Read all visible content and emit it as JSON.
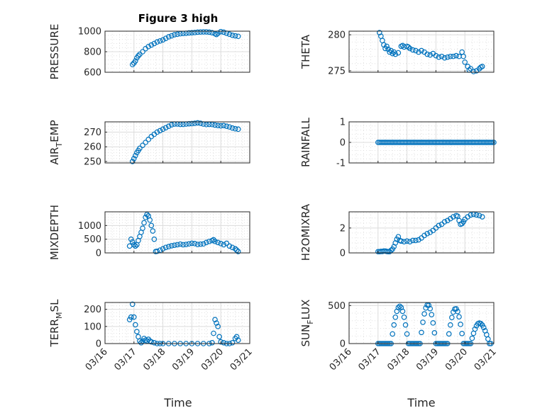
{
  "figure": {
    "title": "Figure 3 high",
    "xlabel": "Time"
  },
  "chart_data": [
    {
      "type": "scatter",
      "ylabel": "PRESSURE",
      "xlim": [
        "03/16",
        "03/21"
      ],
      "ylim": [
        600,
        1000
      ],
      "xticks": [
        "03/16",
        "03/17",
        "03/18",
        "03/19",
        "03/20",
        "03/21"
      ],
      "yticks": [
        600,
        800,
        1000
      ],
      "grid": true,
      "points": [
        [
          0.95,
          675
        ],
        [
          1.0,
          690
        ],
        [
          1.05,
          710
        ],
        [
          1.1,
          740
        ],
        [
          1.15,
          760
        ],
        [
          1.2,
          775
        ],
        [
          1.3,
          800
        ],
        [
          1.4,
          830
        ],
        [
          1.5,
          850
        ],
        [
          1.6,
          865
        ],
        [
          1.7,
          880
        ],
        [
          1.8,
          895
        ],
        [
          1.9,
          905
        ],
        [
          2.0,
          915
        ],
        [
          2.1,
          930
        ],
        [
          2.2,
          945
        ],
        [
          2.3,
          955
        ],
        [
          2.4,
          965
        ],
        [
          2.5,
          970
        ],
        [
          2.6,
          975
        ],
        [
          2.7,
          978
        ],
        [
          2.8,
          980
        ],
        [
          2.9,
          983
        ],
        [
          3.0,
          985
        ],
        [
          3.1,
          987
        ],
        [
          3.2,
          990
        ],
        [
          3.3,
          992
        ],
        [
          3.4,
          993
        ],
        [
          3.5,
          993
        ],
        [
          3.6,
          990
        ],
        [
          3.7,
          985
        ],
        [
          3.8,
          975
        ],
        [
          3.85,
          968
        ],
        [
          3.9,
          980
        ],
        [
          4.0,
          995
        ],
        [
          4.1,
          990
        ],
        [
          4.2,
          980
        ],
        [
          4.3,
          970
        ],
        [
          4.4,
          960
        ],
        [
          4.5,
          955
        ],
        [
          4.6,
          950
        ]
      ]
    },
    {
      "type": "scatter",
      "ylabel": "THETA",
      "xlim": [
        "03/16",
        "03/21"
      ],
      "ylim": [
        274.8,
        280.5
      ],
      "xticks": [
        "03/16",
        "03/17",
        "03/18",
        "03/19",
        "03/20",
        "03/21"
      ],
      "yticks": [
        275,
        280
      ],
      "grid": true,
      "points": [
        [
          1.05,
          280.3
        ],
        [
          1.1,
          279.8
        ],
        [
          1.15,
          279.2
        ],
        [
          1.2,
          278.6
        ],
        [
          1.25,
          278.1
        ],
        [
          1.3,
          278.4
        ],
        [
          1.35,
          278.0
        ],
        [
          1.4,
          277.6
        ],
        [
          1.45,
          277.8
        ],
        [
          1.5,
          277.4
        ],
        [
          1.55,
          277.6
        ],
        [
          1.6,
          277.3
        ],
        [
          1.7,
          277.5
        ],
        [
          1.8,
          278.4
        ],
        [
          1.85,
          278.5
        ],
        [
          1.9,
          278.3
        ],
        [
          2.0,
          278.4
        ],
        [
          2.05,
          278.3
        ],
        [
          2.1,
          278.1
        ],
        [
          2.2,
          277.9
        ],
        [
          2.3,
          277.8
        ],
        [
          2.4,
          277.6
        ],
        [
          2.5,
          277.8
        ],
        [
          2.6,
          277.6
        ],
        [
          2.7,
          277.3
        ],
        [
          2.8,
          277.2
        ],
        [
          2.9,
          277.4
        ],
        [
          3.0,
          277.1
        ],
        [
          3.1,
          276.9
        ],
        [
          3.2,
          277.0
        ],
        [
          3.3,
          276.8
        ],
        [
          3.4,
          276.9
        ],
        [
          3.5,
          277.0
        ],
        [
          3.6,
          277.0
        ],
        [
          3.7,
          277.1
        ],
        [
          3.8,
          277.0
        ],
        [
          3.9,
          277.6
        ],
        [
          3.95,
          277.0
        ],
        [
          4.0,
          276.2
        ],
        [
          4.1,
          275.6
        ],
        [
          4.15,
          275.1
        ],
        [
          4.2,
          275.3
        ],
        [
          4.3,
          274.9
        ],
        [
          4.4,
          275.0
        ],
        [
          4.5,
          275.3
        ],
        [
          4.55,
          275.5
        ],
        [
          4.6,
          275.6
        ]
      ]
    },
    {
      "type": "scatter",
      "ylabel": "AIR_T_EMP",
      "xlim": [
        "03/16",
        "03/21"
      ],
      "ylim": [
        249,
        277
      ],
      "xticks": [
        "03/16",
        "03/17",
        "03/18",
        "03/19",
        "03/20",
        "03/21"
      ],
      "yticks": [
        250,
        260,
        270
      ],
      "grid": true,
      "points": [
        [
          0.95,
          250
        ],
        [
          1.0,
          252
        ],
        [
          1.05,
          254
        ],
        [
          1.1,
          256
        ],
        [
          1.15,
          257.5
        ],
        [
          1.2,
          259
        ],
        [
          1.3,
          261
        ],
        [
          1.4,
          263
        ],
        [
          1.5,
          265
        ],
        [
          1.6,
          267
        ],
        [
          1.7,
          268.5
        ],
        [
          1.8,
          270
        ],
        [
          1.9,
          271
        ],
        [
          2.0,
          272
        ],
        [
          2.1,
          273
        ],
        [
          2.2,
          274
        ],
        [
          2.3,
          275
        ],
        [
          2.4,
          275.5
        ],
        [
          2.5,
          275.5
        ],
        [
          2.6,
          275.3
        ],
        [
          2.7,
          275.3
        ],
        [
          2.8,
          275.5
        ],
        [
          2.9,
          275.7
        ],
        [
          3.0,
          275.8
        ],
        [
          3.1,
          276
        ],
        [
          3.2,
          276.3
        ],
        [
          3.3,
          276
        ],
        [
          3.4,
          275.5
        ],
        [
          3.5,
          275.2
        ],
        [
          3.6,
          275.3
        ],
        [
          3.7,
          275.2
        ],
        [
          3.8,
          274.8
        ],
        [
          3.9,
          274.5
        ],
        [
          4.0,
          274.3
        ],
        [
          4.1,
          274.5
        ],
        [
          4.2,
          274.0
        ],
        [
          4.3,
          273.5
        ],
        [
          4.4,
          272.8
        ],
        [
          4.5,
          272.3
        ],
        [
          4.6,
          272.0
        ]
      ]
    },
    {
      "type": "scatter",
      "ylabel": "RAINFALL",
      "xlim": [
        "03/16",
        "03/21"
      ],
      "ylim": [
        -1,
        1
      ],
      "xticks": [
        "03/16",
        "03/17",
        "03/18",
        "03/19",
        "03/20",
        "03/21"
      ],
      "yticks": [
        -1,
        0,
        1
      ],
      "grid": true,
      "constant": {
        "value": 0,
        "xstart": 1.0,
        "xend": 5.0,
        "step": 0.05
      }
    },
    {
      "type": "scatter",
      "ylabel": "MIXDEPTH",
      "xlim": [
        "03/16",
        "03/21"
      ],
      "ylim": [
        0,
        1500
      ],
      "xticks": [
        "03/16",
        "03/17",
        "03/18",
        "03/19",
        "03/20",
        "03/21"
      ],
      "yticks": [
        0,
        500,
        1000
      ],
      "grid": true,
      "points": [
        [
          0.85,
          250
        ],
        [
          0.9,
          500
        ],
        [
          0.95,
          400
        ],
        [
          1.0,
          300
        ],
        [
          1.05,
          250
        ],
        [
          1.1,
          300
        ],
        [
          1.15,
          450
        ],
        [
          1.2,
          600
        ],
        [
          1.25,
          750
        ],
        [
          1.3,
          900
        ],
        [
          1.35,
          1100
        ],
        [
          1.4,
          1300
        ],
        [
          1.45,
          1400
        ],
        [
          1.5,
          1350
        ],
        [
          1.55,
          1200
        ],
        [
          1.6,
          1000
        ],
        [
          1.65,
          800
        ],
        [
          1.7,
          500
        ],
        [
          1.75,
          50
        ],
        [
          1.8,
          60
        ],
        [
          1.9,
          100
        ],
        [
          2.0,
          150
        ],
        [
          2.1,
          200
        ],
        [
          2.2,
          230
        ],
        [
          2.3,
          260
        ],
        [
          2.4,
          280
        ],
        [
          2.5,
          300
        ],
        [
          2.6,
          320
        ],
        [
          2.7,
          300
        ],
        [
          2.8,
          310
        ],
        [
          2.9,
          330
        ],
        [
          3.0,
          350
        ],
        [
          3.1,
          340
        ],
        [
          3.2,
          310
        ],
        [
          3.3,
          320
        ],
        [
          3.4,
          330
        ],
        [
          3.5,
          380
        ],
        [
          3.6,
          420
        ],
        [
          3.7,
          450
        ],
        [
          3.75,
          480
        ],
        [
          3.8,
          420
        ],
        [
          3.9,
          380
        ],
        [
          4.0,
          340
        ],
        [
          4.1,
          300
        ],
        [
          4.2,
          350
        ],
        [
          4.3,
          250
        ],
        [
          4.4,
          200
        ],
        [
          4.5,
          150
        ],
        [
          4.55,
          100
        ],
        [
          4.6,
          50
        ]
      ]
    },
    {
      "type": "scatter",
      "ylabel": "H2OMIXRA",
      "xlim": [
        "03/16",
        "03/21"
      ],
      "ylim": [
        0,
        3.3
      ],
      "xticks": [
        "03/16",
        "03/17",
        "03/18",
        "03/19",
        "03/20",
        "03/21"
      ],
      "yticks": [
        0,
        2
      ],
      "grid": true,
      "points": [
        [
          1.0,
          0.1
        ],
        [
          1.05,
          0.1
        ],
        [
          1.1,
          0.12
        ],
        [
          1.15,
          0.12
        ],
        [
          1.2,
          0.15
        ],
        [
          1.25,
          0.15
        ],
        [
          1.3,
          0.12
        ],
        [
          1.35,
          0.1
        ],
        [
          1.4,
          0.1
        ],
        [
          1.45,
          0.2
        ],
        [
          1.5,
          0.3
        ],
        [
          1.55,
          0.5
        ],
        [
          1.6,
          0.8
        ],
        [
          1.65,
          1.1
        ],
        [
          1.7,
          1.3
        ],
        [
          1.75,
          1.0
        ],
        [
          1.8,
          0.95
        ],
        [
          1.9,
          0.9
        ],
        [
          2.0,
          0.95
        ],
        [
          2.1,
          0.9
        ],
        [
          2.2,
          1.0
        ],
        [
          2.3,
          1.0
        ],
        [
          2.4,
          1.05
        ],
        [
          2.5,
          1.2
        ],
        [
          2.6,
          1.4
        ],
        [
          2.7,
          1.55
        ],
        [
          2.8,
          1.65
        ],
        [
          2.9,
          1.8
        ],
        [
          3.0,
          2.0
        ],
        [
          3.1,
          2.2
        ],
        [
          3.2,
          2.3
        ],
        [
          3.3,
          2.5
        ],
        [
          3.4,
          2.6
        ],
        [
          3.5,
          2.75
        ],
        [
          3.6,
          2.9
        ],
        [
          3.7,
          3.0
        ],
        [
          3.75,
          2.95
        ],
        [
          3.8,
          2.6
        ],
        [
          3.85,
          2.3
        ],
        [
          3.9,
          2.35
        ],
        [
          3.95,
          2.5
        ],
        [
          4.0,
          2.7
        ],
        [
          4.1,
          2.9
        ],
        [
          4.2,
          3.05
        ],
        [
          4.3,
          3.1
        ],
        [
          4.4,
          3.05
        ],
        [
          4.5,
          3.0
        ],
        [
          4.6,
          2.9
        ]
      ]
    },
    {
      "type": "scatter",
      "ylabel": "TERR_M_SL",
      "xlim": [
        "03/16",
        "03/21"
      ],
      "ylim": [
        0,
        240
      ],
      "xticks": [
        "03/16",
        "03/17",
        "03/18",
        "03/19",
        "03/20",
        "03/21"
      ],
      "yticks": [
        0,
        100,
        200
      ],
      "grid": true,
      "points": [
        [
          0.85,
          140
        ],
        [
          0.9,
          155
        ],
        [
          0.95,
          230
        ],
        [
          1.0,
          155
        ],
        [
          1.05,
          110
        ],
        [
          1.1,
          70
        ],
        [
          1.15,
          40
        ],
        [
          1.2,
          15
        ],
        [
          1.25,
          5
        ],
        [
          1.3,
          15
        ],
        [
          1.35,
          30
        ],
        [
          1.4,
          20
        ],
        [
          1.45,
          15
        ],
        [
          1.5,
          25
        ],
        [
          1.55,
          15
        ],
        [
          1.6,
          10
        ],
        [
          1.7,
          5
        ],
        [
          1.8,
          0
        ],
        [
          1.9,
          0
        ],
        [
          2.0,
          0
        ],
        [
          2.2,
          0
        ],
        [
          2.4,
          0
        ],
        [
          2.6,
          0
        ],
        [
          2.8,
          0
        ],
        [
          3.0,
          0
        ],
        [
          3.2,
          0
        ],
        [
          3.4,
          0
        ],
        [
          3.6,
          0
        ],
        [
          3.7,
          5
        ],
        [
          3.75,
          60
        ],
        [
          3.8,
          140
        ],
        [
          3.85,
          120
        ],
        [
          3.9,
          100
        ],
        [
          3.95,
          40
        ],
        [
          4.0,
          10
        ],
        [
          4.1,
          5
        ],
        [
          4.2,
          0
        ],
        [
          4.3,
          0
        ],
        [
          4.4,
          5
        ],
        [
          4.5,
          30
        ],
        [
          4.55,
          40
        ],
        [
          4.6,
          20
        ]
      ]
    },
    {
      "type": "scatter",
      "ylabel": "SUN_F_LUX",
      "xlim": [
        "03/16",
        "03/21"
      ],
      "ylim": [
        0,
        540
      ],
      "xticks": [
        "03/16",
        "03/17",
        "03/18",
        "03/19",
        "03/20",
        "03/21"
      ],
      "yticks": [
        0,
        500
      ],
      "grid": true,
      "days": [
        {
          "start": 1.45,
          "peak": 1.75,
          "end": 2.05,
          "max": 490
        },
        {
          "start": 2.45,
          "peak": 2.72,
          "end": 3.0,
          "max": 510
        },
        {
          "start": 3.4,
          "peak": 3.68,
          "end": 3.95,
          "max": 460
        },
        {
          "start": 4.2,
          "peak": 4.5,
          "end": 4.85,
          "max": 270
        }
      ]
    }
  ]
}
